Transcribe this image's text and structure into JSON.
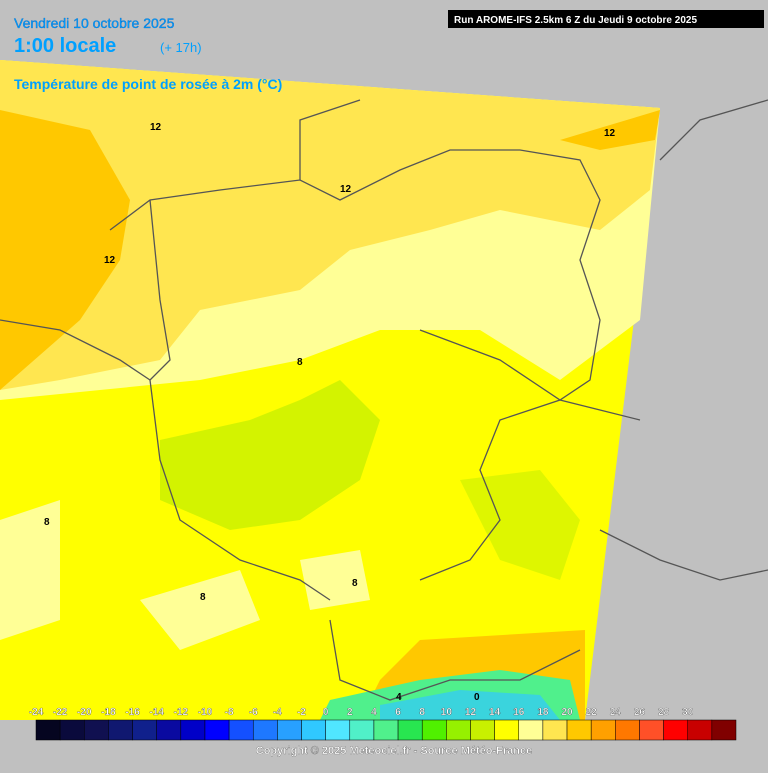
{
  "header": {
    "date": "Vendredi 10 octobre 2025",
    "time": "1:00 locale",
    "lead": "(+ 17h)",
    "parameter": "Température de point de rosée à 2m (°C)",
    "run": "Run AROME-IFS 2.5km 6 Z du Jeudi 9 octobre 2025"
  },
  "contour_labels": [
    "12",
    "12",
    "12",
    "12",
    "8",
    "8",
    "8",
    "8",
    "4",
    "0"
  ],
  "legend": {
    "ticks": [
      -24,
      -22,
      -20,
      -18,
      -16,
      -14,
      -12,
      -10,
      -8,
      -6,
      -4,
      -2,
      0,
      2,
      4,
      6,
      8,
      10,
      12,
      14,
      16,
      18,
      20,
      22,
      24,
      26,
      28,
      30
    ],
    "colors": [
      "#050520",
      "#0a0a3c",
      "#101050",
      "#101870",
      "#10208c",
      "#0a0aa0",
      "#0000c8",
      "#0000ff",
      "#1450ff",
      "#1e78ff",
      "#28a0ff",
      "#30c8ff",
      "#50e6ff",
      "#50f0c8",
      "#50f08c",
      "#28e650",
      "#50f000",
      "#96f000",
      "#c8f000",
      "#ffff00",
      "#ffff96",
      "#ffe650",
      "#ffc800",
      "#ffa000",
      "#ff7800",
      "#ff5028",
      "#ff0000",
      "#c80000",
      "#800000"
    ]
  },
  "footer": {
    "copyright": "Copyright © 2025 Meteociel.fr - Source Météo-France"
  }
}
